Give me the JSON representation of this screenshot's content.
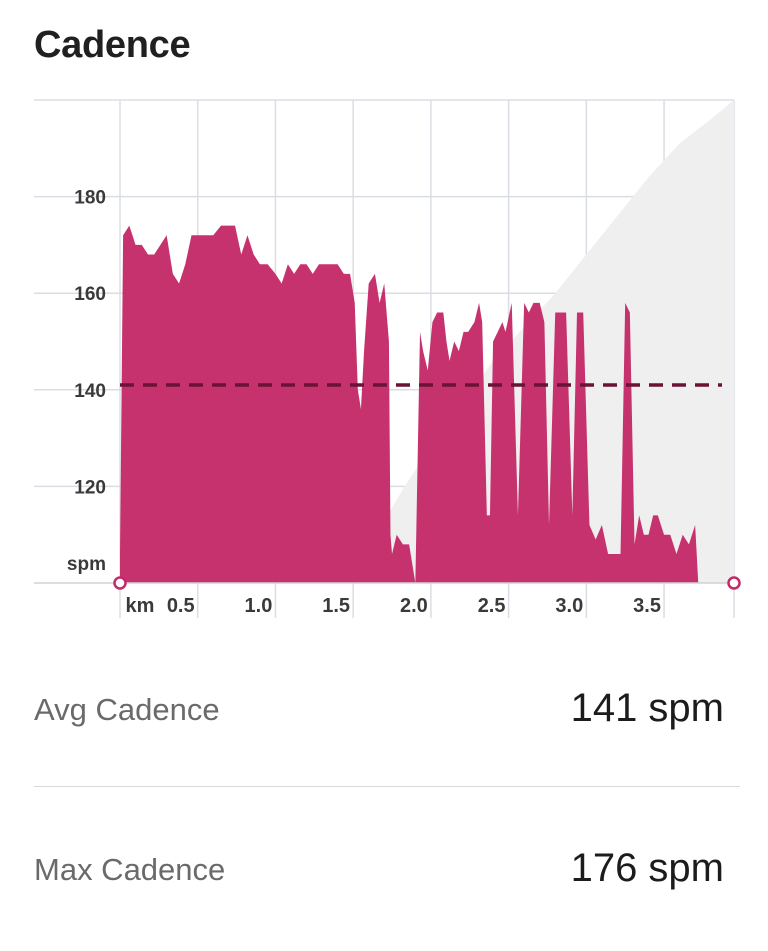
{
  "header": {
    "title": "Cadence"
  },
  "chart_data": {
    "type": "area",
    "x_unit": "km",
    "y_unit": "spm",
    "x_ticks": [
      "0.5",
      "1.0",
      "1.5",
      "2.0",
      "2.5",
      "3.0",
      "3.5"
    ],
    "y_ticks": [
      "180",
      "160",
      "140",
      "120"
    ],
    "xlim": [
      0,
      3.95
    ],
    "ylim": [
      100,
      200
    ],
    "grid": true,
    "average": 141,
    "colors": {
      "cadence": "#c42a68",
      "average_line": "#6b1237",
      "elevation": "#efefef",
      "grid": "#dadde3"
    },
    "series": [
      {
        "values": [
          [
            0.0,
            106
          ],
          [
            0.02,
            172
          ],
          [
            0.06,
            174
          ],
          [
            0.1,
            170
          ],
          [
            0.14,
            170
          ],
          [
            0.18,
            168
          ],
          [
            0.22,
            168
          ],
          [
            0.26,
            170
          ],
          [
            0.3,
            172
          ],
          [
            0.34,
            164
          ],
          [
            0.38,
            162
          ],
          [
            0.42,
            166
          ],
          [
            0.46,
            172
          ],
          [
            0.5,
            172
          ],
          [
            0.55,
            172
          ],
          [
            0.6,
            172
          ],
          [
            0.65,
            174
          ],
          [
            0.7,
            174
          ],
          [
            0.74,
            174
          ],
          [
            0.78,
            168
          ],
          [
            0.82,
            172
          ],
          [
            0.86,
            168
          ],
          [
            0.9,
            166
          ],
          [
            0.95,
            166
          ],
          [
            1.0,
            164
          ],
          [
            1.04,
            162
          ],
          [
            1.08,
            166
          ],
          [
            1.12,
            164
          ],
          [
            1.16,
            166
          ],
          [
            1.2,
            166
          ],
          [
            1.24,
            164
          ],
          [
            1.28,
            166
          ],
          [
            1.32,
            166
          ],
          [
            1.36,
            166
          ],
          [
            1.4,
            166
          ],
          [
            1.44,
            164
          ],
          [
            1.48,
            164
          ],
          [
            1.51,
            158
          ],
          [
            1.53,
            140
          ],
          [
            1.55,
            136
          ],
          [
            1.57,
            148
          ],
          [
            1.6,
            162
          ],
          [
            1.64,
            164
          ],
          [
            1.67,
            158
          ],
          [
            1.7,
            162
          ],
          [
            1.73,
            150
          ],
          [
            1.74,
            110
          ],
          [
            1.75,
            106
          ],
          [
            1.78,
            110
          ],
          [
            1.82,
            108
          ],
          [
            1.86,
            108
          ],
          [
            1.9,
            100
          ],
          [
            1.93,
            152
          ],
          [
            1.95,
            148
          ],
          [
            1.98,
            144
          ],
          [
            2.01,
            154
          ],
          [
            2.04,
            156
          ],
          [
            2.08,
            156
          ],
          [
            2.1,
            150
          ],
          [
            2.12,
            146
          ],
          [
            2.15,
            150
          ],
          [
            2.18,
            148
          ],
          [
            2.21,
            152
          ],
          [
            2.24,
            152
          ],
          [
            2.28,
            154
          ],
          [
            2.31,
            158
          ],
          [
            2.33,
            154
          ],
          [
            2.36,
            114
          ],
          [
            2.38,
            114
          ],
          [
            2.4,
            150
          ],
          [
            2.43,
            152
          ],
          [
            2.46,
            154
          ],
          [
            2.48,
            152
          ],
          [
            2.52,
            158
          ],
          [
            2.56,
            114
          ],
          [
            2.6,
            158
          ],
          [
            2.63,
            156
          ],
          [
            2.66,
            158
          ],
          [
            2.7,
            158
          ],
          [
            2.73,
            154
          ],
          [
            2.76,
            112
          ],
          [
            2.8,
            156
          ],
          [
            2.84,
            156
          ],
          [
            2.87,
            156
          ],
          [
            2.91,
            114
          ],
          [
            2.94,
            156
          ],
          [
            2.98,
            156
          ],
          [
            3.02,
            112
          ],
          [
            3.06,
            109
          ],
          [
            3.1,
            112
          ],
          [
            3.14,
            106
          ],
          [
            3.18,
            106
          ],
          [
            3.22,
            106
          ],
          [
            3.25,
            158
          ],
          [
            3.28,
            156
          ],
          [
            3.31,
            108
          ],
          [
            3.34,
            114
          ],
          [
            3.37,
            110
          ],
          [
            3.4,
            110
          ],
          [
            3.43,
            114
          ],
          [
            3.46,
            114
          ],
          [
            3.5,
            110
          ],
          [
            3.54,
            110
          ],
          [
            3.58,
            106
          ],
          [
            3.62,
            110
          ],
          [
            3.66,
            108
          ],
          [
            3.7,
            112
          ],
          [
            3.72,
            100
          ]
        ]
      }
    ],
    "elevation_profile": [
      [
        0.0,
        106
      ],
      [
        0.15,
        104.5
      ],
      [
        0.3,
        103
      ],
      [
        0.5,
        101.5
      ],
      [
        0.7,
        100.5
      ],
      [
        0.9,
        100.5
      ],
      [
        1.1,
        101
      ],
      [
        1.3,
        101.5
      ],
      [
        1.4,
        102
      ],
      [
        1.55,
        106
      ],
      [
        1.7,
        113
      ],
      [
        1.85,
        121
      ],
      [
        2.0,
        128
      ],
      [
        2.2,
        137
      ],
      [
        2.4,
        146
      ],
      [
        2.6,
        153
      ],
      [
        2.8,
        160
      ],
      [
        3.0,
        168
      ],
      [
        3.2,
        176
      ],
      [
        3.4,
        184
      ],
      [
        3.6,
        191
      ],
      [
        3.8,
        196
      ],
      [
        3.95,
        200
      ]
    ]
  },
  "stats": [
    {
      "label": "Avg Cadence",
      "value": "141 spm"
    },
    {
      "label": "Max Cadence",
      "value": "176 spm"
    }
  ]
}
